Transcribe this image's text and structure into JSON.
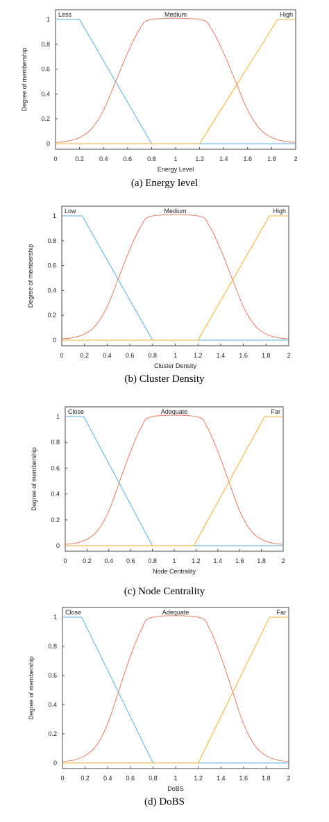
{
  "chart_data": [
    {
      "type": "line",
      "caption": "(a) Energy level",
      "xlabel": "Energy Level",
      "ylabel": "Degree of membership",
      "xlim": [
        0,
        2
      ],
      "ylim": [
        0,
        1
      ],
      "xticks": [
        "0",
        "0.2",
        "0.4",
        "0.6",
        "0.8",
        "1",
        "1.2",
        "1.4",
        "1.6",
        "1.8",
        "2"
      ],
      "yticks": [
        "0",
        "0.2",
        "0.4",
        "0.6",
        "0.8",
        "1"
      ],
      "grid": false,
      "series": [
        {
          "name": "Less",
          "color": "#5aaee0",
          "x": [
            0,
            0.2,
            0.8,
            2
          ],
          "y": [
            1,
            1,
            0,
            0
          ]
        },
        {
          "name": "Medium",
          "color": "#e07a5f",
          "x": [
            0,
            0.1,
            0.2,
            0.3,
            0.4,
            0.5,
            0.6,
            0.7,
            0.8,
            1.2,
            1.3,
            1.4,
            1.5,
            1.6,
            1.7,
            1.8,
            1.9,
            2
          ],
          "y": [
            0.01,
            0.02,
            0.05,
            0.12,
            0.27,
            0.5,
            0.73,
            0.92,
            1,
            1,
            0.92,
            0.73,
            0.5,
            0.27,
            0.12,
            0.05,
            0.02,
            0.01
          ]
        },
        {
          "name": "High",
          "color": "#f0b030",
          "x": [
            0,
            1.2,
            1.85,
            2
          ],
          "y": [
            0,
            0,
            1,
            1
          ]
        }
      ]
    },
    {
      "type": "line",
      "caption": "(b) Cluster Density",
      "xlabel": "Cluster Density",
      "ylabel": "Degree of membership",
      "xlim": [
        0,
        2
      ],
      "ylim": [
        0,
        1
      ],
      "xticks": [
        "0",
        "0.2",
        "0.4",
        "0.6",
        "0.8",
        "1",
        "1.2",
        "1.4",
        "1.6",
        "1.8",
        "2"
      ],
      "yticks": [
        "0",
        "0.2",
        "0.4",
        "0.6",
        "0.8",
        "1"
      ],
      "grid": false,
      "series": [
        {
          "name": "Low",
          "color": "#5aaee0",
          "x": [
            0,
            0.18,
            0.8,
            2
          ],
          "y": [
            1,
            1,
            0,
            0
          ]
        },
        {
          "name": "Medium",
          "color": "#e07a5f",
          "x": [
            0,
            0.1,
            0.2,
            0.3,
            0.4,
            0.5,
            0.6,
            0.7,
            0.8,
            1.2,
            1.3,
            1.4,
            1.5,
            1.6,
            1.7,
            1.8,
            1.9,
            2
          ],
          "y": [
            0.01,
            0.02,
            0.05,
            0.12,
            0.27,
            0.5,
            0.73,
            0.92,
            1,
            1,
            0.92,
            0.73,
            0.5,
            0.27,
            0.12,
            0.05,
            0.02,
            0.01
          ]
        },
        {
          "name": "High",
          "color": "#f0b030",
          "x": [
            0,
            1.2,
            1.83,
            2
          ],
          "y": [
            0,
            0,
            1,
            1
          ]
        }
      ]
    },
    {
      "type": "line",
      "caption": "(c) Node Centrality",
      "xlabel": "Node Centrality",
      "ylabel": "Degree of membership",
      "xlim": [
        0,
        2
      ],
      "ylim": [
        0,
        1
      ],
      "xticks": [
        "0",
        "0.2",
        "0.4",
        "0.6",
        "0.8",
        "1",
        "1.2",
        "1.4",
        "1.6",
        "1.8",
        "2"
      ],
      "yticks": [
        "0",
        "0.2",
        "0.4",
        "0.6",
        "0.8",
        "1"
      ],
      "grid": false,
      "series": [
        {
          "name": "Close",
          "color": "#5aaee0",
          "x": [
            0,
            0.17,
            0.8,
            2
          ],
          "y": [
            1,
            1,
            0,
            0
          ]
        },
        {
          "name": "Adequate",
          "color": "#e07a5f",
          "x": [
            0,
            0.1,
            0.2,
            0.3,
            0.4,
            0.5,
            0.6,
            0.7,
            0.8,
            1.2,
            1.3,
            1.4,
            1.5,
            1.6,
            1.7,
            1.8,
            1.9,
            2
          ],
          "y": [
            0.01,
            0.02,
            0.05,
            0.12,
            0.27,
            0.5,
            0.73,
            0.92,
            1,
            1,
            0.92,
            0.73,
            0.5,
            0.27,
            0.12,
            0.05,
            0.02,
            0.01
          ]
        },
        {
          "name": "Far",
          "color": "#f0b030",
          "x": [
            0,
            1.18,
            1.83,
            2
          ],
          "y": [
            0,
            0,
            1,
            1
          ]
        }
      ]
    },
    {
      "type": "line",
      "caption": "(d) DoBS",
      "xlabel": "DoBS",
      "ylabel": "Degree of membership",
      "xlim": [
        0,
        2
      ],
      "ylim": [
        0,
        1
      ],
      "xticks": [
        "0",
        "0.2",
        "0.4",
        "0.6",
        "0.8",
        "1",
        "1.2",
        "1.4",
        "1.6",
        "1.8",
        "2"
      ],
      "yticks": [
        "0",
        "0.2",
        "0.4",
        "0.6",
        "0.8",
        "1"
      ],
      "grid": false,
      "series": [
        {
          "name": "Close",
          "color": "#5aaee0",
          "x": [
            0,
            0.17,
            0.8,
            2
          ],
          "y": [
            1,
            1,
            0,
            0
          ]
        },
        {
          "name": "Adequate",
          "color": "#e07a5f",
          "x": [
            0,
            0.1,
            0.2,
            0.3,
            0.4,
            0.5,
            0.6,
            0.7,
            0.8,
            1.2,
            1.3,
            1.4,
            1.5,
            1.6,
            1.7,
            1.8,
            1.9,
            2
          ],
          "y": [
            0.01,
            0.02,
            0.05,
            0.12,
            0.27,
            0.5,
            0.73,
            0.92,
            1,
            1,
            0.92,
            0.73,
            0.5,
            0.27,
            0.12,
            0.05,
            0.02,
            0.01
          ]
        },
        {
          "name": "Far",
          "color": "#f0b030",
          "x": [
            0,
            1.2,
            1.83,
            2
          ],
          "y": [
            0,
            0,
            1,
            1
          ]
        }
      ]
    }
  ]
}
